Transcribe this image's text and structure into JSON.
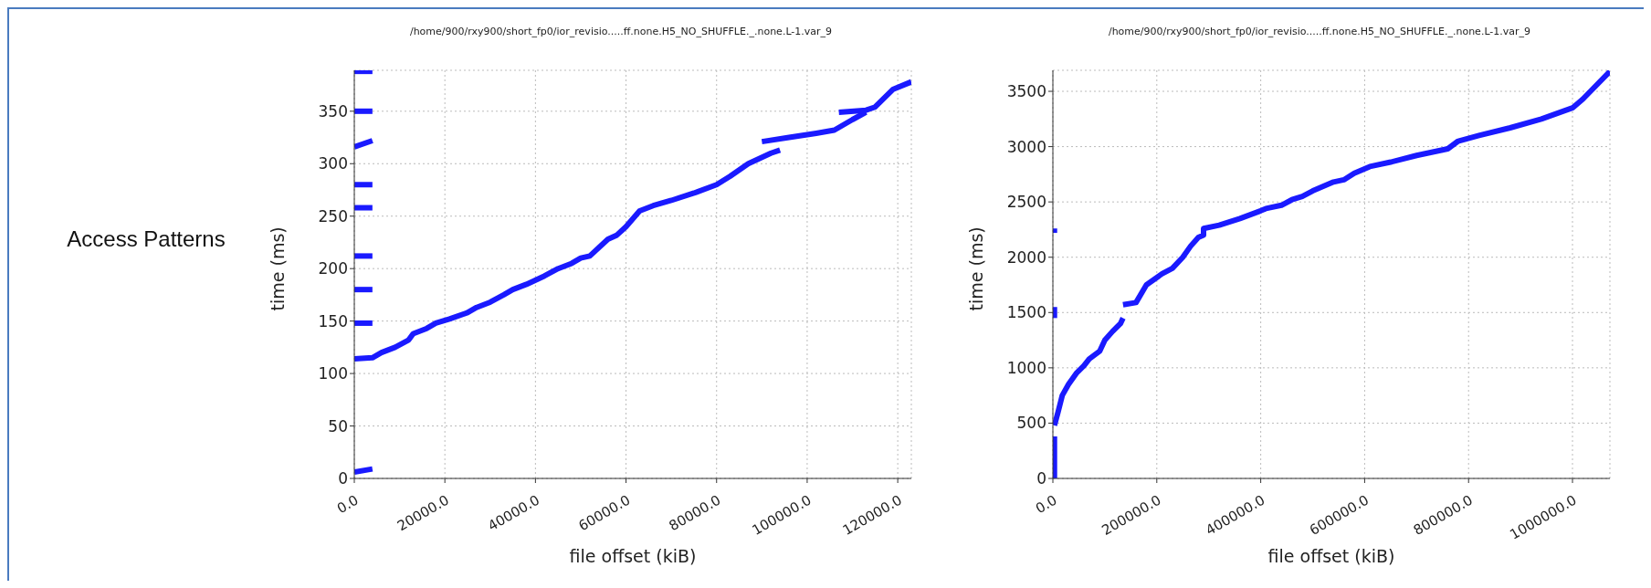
{
  "chart_data": [
    {
      "type": "line",
      "title": "/home/900/rxy900/short_fp0/ior_revisio.....ff.none.H5_NO_SHUFFLE._.none.L-1.var_9",
      "xlabel": "file offset (kiB)",
      "ylabel": "time (ms)",
      "annotations": [
        "Access Patterns"
      ],
      "xlim": [
        0,
        123000
      ],
      "ylim": [
        0,
        389
      ],
      "xticks": [
        {
          "value": 0,
          "label": "0.0"
        },
        {
          "value": 20000,
          "label": "20000.0"
        },
        {
          "value": 40000,
          "label": "40000.0"
        },
        {
          "value": 60000,
          "label": "60000.0"
        },
        {
          "value": 80000,
          "label": "80000.0"
        },
        {
          "value": 100000,
          "label": "100000.0"
        },
        {
          "value": 120000,
          "label": "120000.0"
        }
      ],
      "yticks": [
        0,
        50,
        100,
        150,
        200,
        250,
        300,
        350
      ],
      "grid": true,
      "marker": "none",
      "line_style": "solid",
      "series": [
        {
          "color": "#1a1aff",
          "x": [
            0,
            4000
          ],
          "values": [
            6,
            9
          ]
        },
        {
          "color": "#1a1aff",
          "x": [
            0,
            4000
          ],
          "values": [
            148,
            148
          ]
        },
        {
          "color": "#1a1aff",
          "x": [
            0,
            4000
          ],
          "values": [
            180,
            180
          ]
        },
        {
          "color": "#1a1aff",
          "x": [
            0,
            4000
          ],
          "values": [
            212,
            212
          ]
        },
        {
          "color": "#1a1aff",
          "x": [
            0,
            4000
          ],
          "values": [
            258,
            258
          ]
        },
        {
          "color": "#1a1aff",
          "x": [
            0,
            4000
          ],
          "values": [
            280,
            280
          ]
        },
        {
          "color": "#1a1aff",
          "x": [
            0,
            4000
          ],
          "values": [
            316,
            322
          ]
        },
        {
          "color": "#1a1aff",
          "x": [
            0,
            4000
          ],
          "values": [
            350,
            350
          ]
        },
        {
          "color": "#1a1aff",
          "x": [
            0,
            4000
          ],
          "values": [
            388,
            388
          ]
        },
        {
          "color": "#1a1aff",
          "x": [
            0,
            4000,
            6000,
            9000,
            12000,
            13000,
            16000,
            18000,
            21000,
            25000,
            27000,
            30000,
            33000,
            35000,
            38000,
            42000,
            45000,
            48000,
            50000,
            52000,
            56000,
            58000,
            60000,
            63000,
            66000,
            70000,
            75000,
            80000,
            83000,
            87000,
            92000,
            94000
          ],
          "values": [
            114,
            115,
            120,
            125,
            132,
            138,
            143,
            148,
            152,
            158,
            163,
            168,
            175,
            180,
            185,
            193,
            200,
            205,
            210,
            212,
            228,
            232,
            240,
            255,
            260,
            265,
            272,
            280,
            288,
            300,
            310,
            313
          ]
        },
        {
          "color": "#1a1aff",
          "x": [
            90000,
            96000,
            102000,
            106000,
            110000,
            113000
          ],
          "values": [
            321,
            325,
            329,
            332,
            342,
            349
          ]
        },
        {
          "color": "#1a1aff",
          "x": [
            107000,
            113000,
            115000,
            119000,
            123000
          ],
          "values": [
            349,
            351,
            354,
            371,
            378
          ]
        }
      ]
    },
    {
      "type": "line",
      "title": "/home/900/rxy900/short_fp0/ior_revisio.....ff.none.H5_NO_SHUFFLE._.none.L-1.var_9",
      "xlabel": "file offset (kiB)",
      "ylabel": "time (ms)",
      "xlim": [
        0,
        1072000
      ],
      "ylim": [
        0,
        3690
      ],
      "xticks": [
        {
          "value": 0,
          "label": "0.0"
        },
        {
          "value": 200000,
          "label": "200000.0"
        },
        {
          "value": 400000,
          "label": "400000.0"
        },
        {
          "value": 600000,
          "label": "600000.0"
        },
        {
          "value": 800000,
          "label": "800000.0"
        },
        {
          "value": 1000000,
          "label": "1000000.0"
        }
      ],
      "yticks": [
        0,
        500,
        1000,
        1500,
        2000,
        2500,
        3000,
        3500
      ],
      "grid": true,
      "marker": "none",
      "line_style": "solid",
      "series": [
        {
          "color": "#1a1aff",
          "x": [
            3000,
            3000
          ],
          "values": [
            0,
            380
          ]
        },
        {
          "color": "#1a1aff",
          "x": [
            3000,
            3000
          ],
          "values": [
            1450,
            1550
          ]
        },
        {
          "color": "#1a1aff",
          "x": [
            3000,
            3000
          ],
          "values": [
            2220,
            2260
          ]
        },
        {
          "color": "#1a1aff",
          "x": [
            3000,
            10000,
            18000,
            30000,
            45000,
            60000,
            70000,
            90000,
            100000,
            115000,
            130000,
            135000
          ],
          "values": [
            480,
            600,
            750,
            850,
            950,
            1020,
            1080,
            1150,
            1250,
            1330,
            1400,
            1450
          ]
        },
        {
          "color": "#1a1aff",
          "x": [
            135000,
            160000,
            180000,
            210000,
            230000,
            250000,
            265000,
            280000,
            290000,
            290000,
            320000,
            360000,
            400000,
            410000,
            440000,
            460000,
            480000,
            500000,
            540000,
            560000,
            580000,
            610000,
            650000,
            700000,
            760000,
            780000,
            820000,
            880000,
            940000,
            1000000,
            1020000,
            1072000
          ],
          "values": [
            1570,
            1590,
            1750,
            1850,
            1900,
            2000,
            2100,
            2180,
            2200,
            2260,
            2290,
            2350,
            2420,
            2440,
            2470,
            2520,
            2550,
            2600,
            2680,
            2700,
            2760,
            2820,
            2860,
            2920,
            2980,
            3050,
            3100,
            3170,
            3250,
            3350,
            3430,
            3680
          ]
        }
      ]
    }
  ]
}
